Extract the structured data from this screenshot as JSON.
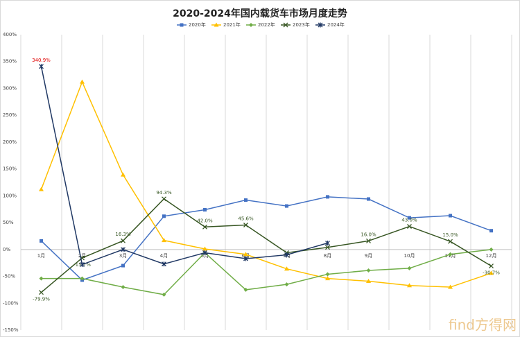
{
  "chart_data": {
    "type": "line",
    "title": "2020-2024年国内载货车市场月度走势",
    "categories": [
      "1月",
      "2月",
      "3月",
      "4月",
      "5月",
      "6月",
      "7月",
      "8月",
      "9月",
      "10月",
      "11月",
      "12月"
    ],
    "series": [
      {
        "name": "2020年",
        "color": "#4472c4",
        "marker": "square",
        "values": [
          16,
          -57,
          -30,
          62,
          74,
          92,
          81,
          98,
          94,
          59,
          63,
          35
        ]
      },
      {
        "name": "2021年",
        "color": "#ffc000",
        "marker": "triangle",
        "values": [
          112,
          312,
          139,
          17,
          1,
          -9,
          -36,
          -54,
          -59,
          -67,
          -70,
          -44
        ]
      },
      {
        "name": "2022年",
        "color": "#70ad47",
        "marker": "diamond",
        "values": [
          -54,
          -54,
          -70,
          -84,
          -6,
          -75,
          -65,
          -46,
          -39,
          -35,
          -9,
          0
        ]
      },
      {
        "name": "2023年",
        "color": "#375623",
        "marker": "x",
        "label_color": "#375623",
        "values": [
          -79.9,
          -15.7,
          16.3,
          94.3,
          42.0,
          45.6,
          -6,
          4,
          16.0,
          43.0,
          15.0,
          -30.7
        ],
        "value_labels": [
          "-79.9%",
          "-15.7%",
          "16.3%",
          "94.3%",
          "42.0%",
          "45.6%",
          null,
          null,
          "16.0%",
          "43.0%",
          "15.0%",
          "-30.7%"
        ]
      },
      {
        "name": "2024年",
        "color": "#203864",
        "marker": "star",
        "label_color": "#e00000",
        "values": [
          340.9,
          -28,
          0,
          -27,
          -6,
          -17,
          -10,
          12,
          null,
          null,
          null,
          null
        ],
        "value_labels": [
          "340.9%",
          null,
          null,
          null,
          null,
          null,
          null,
          null,
          null,
          null,
          null,
          null
        ]
      }
    ],
    "ylim": [
      -150,
      400
    ],
    "yticks": [
      {
        "value": -150,
        "label": "-150%"
      },
      {
        "value": -100,
        "label": "-100%"
      },
      {
        "value": -50,
        "label": "-50%"
      },
      {
        "value": 0,
        "label": "0%"
      },
      {
        "value": 50,
        "label": "50%"
      },
      {
        "value": 100,
        "label": "100%"
      },
      {
        "value": 150,
        "label": "150%"
      },
      {
        "value": 200,
        "label": "200%"
      },
      {
        "value": 250,
        "label": "250%"
      },
      {
        "value": 300,
        "label": "300%"
      },
      {
        "value": 350,
        "label": "350%"
      },
      {
        "value": 400,
        "label": "400%"
      }
    ],
    "legend": "top",
    "watermark": "find方得网"
  }
}
